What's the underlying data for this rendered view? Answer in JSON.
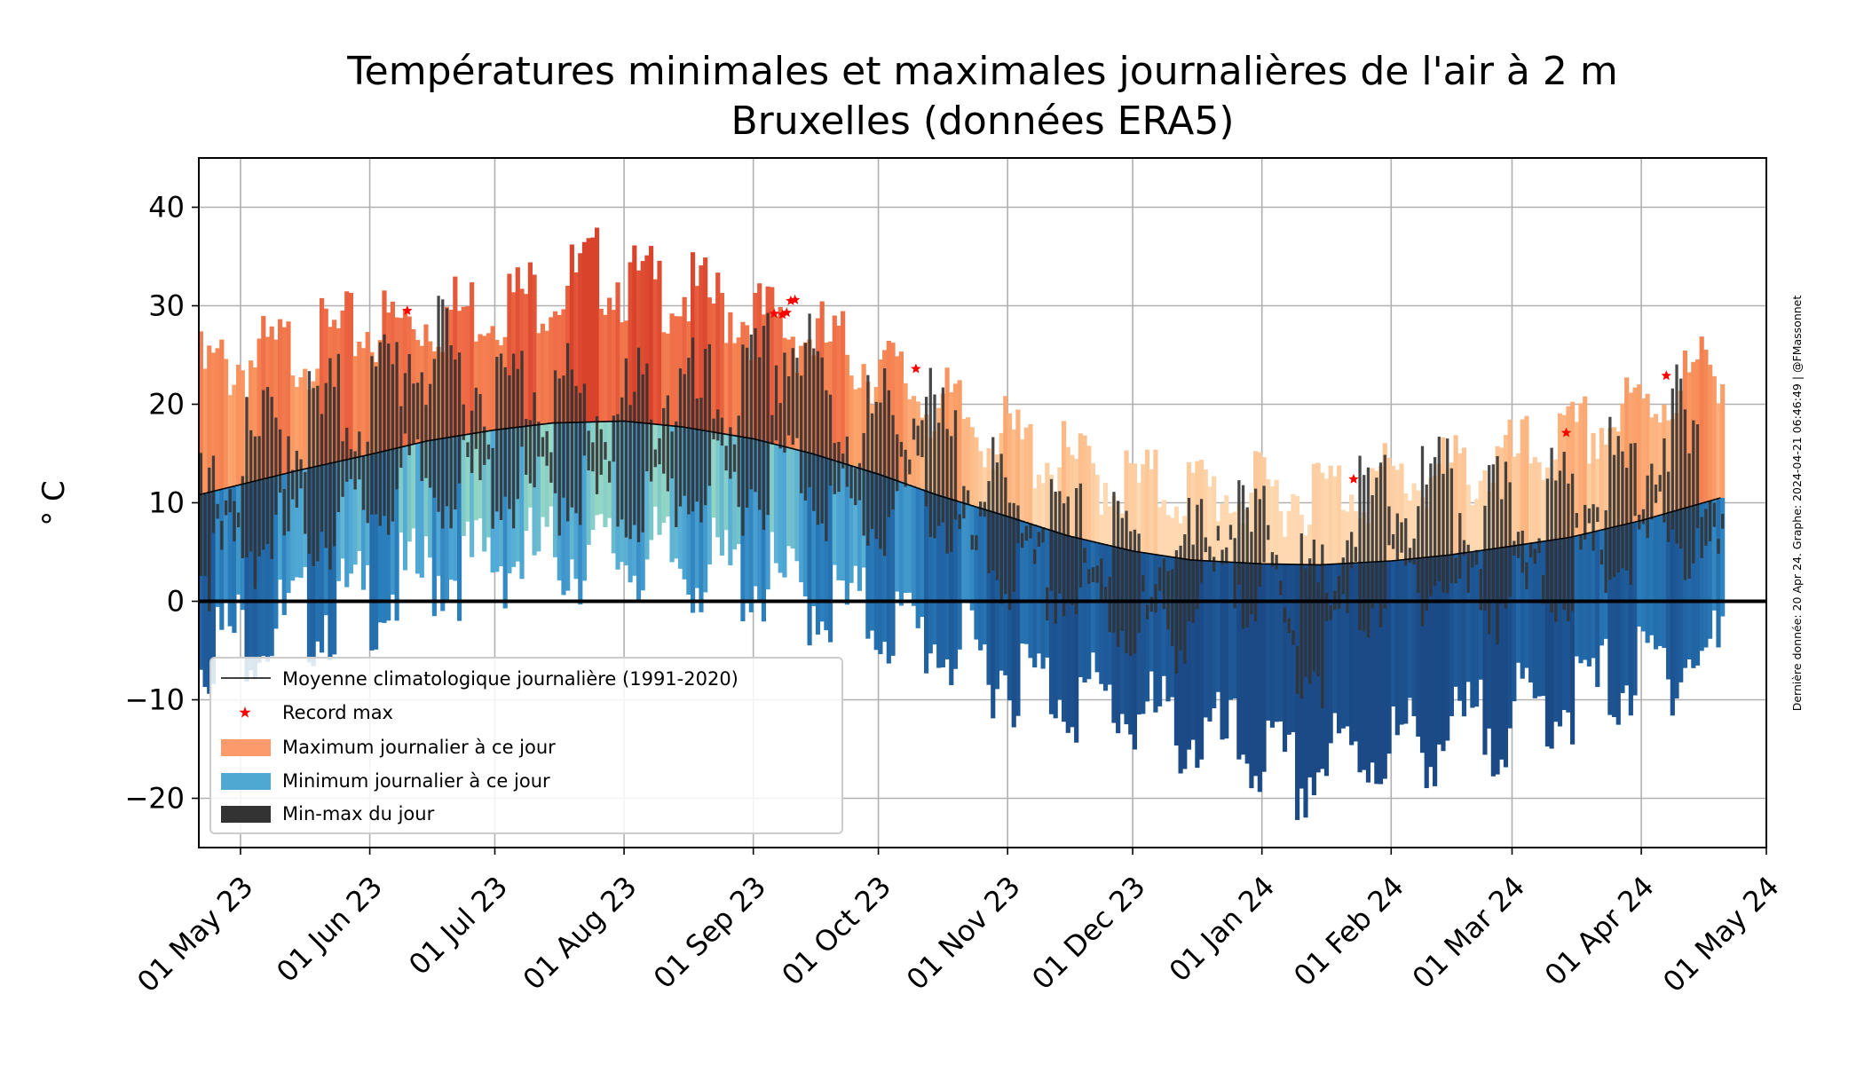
{
  "chart_data": {
    "type": "bar",
    "title": "Températures minimales et maximales journalières de l'air à 2 m",
    "subtitle": "Bruxelles (données ERA5)",
    "xlabel": "",
    "ylabel": "° C",
    "ylim": [
      -25,
      45
    ],
    "yticks": [
      -20,
      -10,
      0,
      10,
      20,
      30,
      40
    ],
    "ytick_labels": [
      "−20",
      "−10",
      "0",
      "10",
      "20",
      "30",
      "40"
    ],
    "xlim": [
      "2023-04-21",
      "2024-05-01"
    ],
    "xticks": [
      "2023-05-01",
      "2023-06-01",
      "2023-07-01",
      "2023-08-01",
      "2023-09-01",
      "2023-10-01",
      "2023-11-01",
      "2023-12-01",
      "2024-01-01",
      "2024-02-01",
      "2024-03-01",
      "2024-04-01",
      "2024-05-01"
    ],
    "xtick_labels": [
      "01 May 23",
      "01 Jun 23",
      "01 Jul 23",
      "01 Aug 23",
      "01 Sep 23",
      "01 Oct 23",
      "01 Nov 23",
      "01 Dec 23",
      "01 Jan 24",
      "01 Feb 24",
      "01 Mar 24",
      "01 Apr 24",
      "01 May 24"
    ],
    "grid": true,
    "zero_line": true,
    "legend_position": "lower-left",
    "legend": [
      {
        "label": "Moyenne climatologique journalière (1991-2020)",
        "kind": "line",
        "color": "#000000"
      },
      {
        "label": "Record max",
        "kind": "star",
        "color": "#ff0000"
      },
      {
        "label": "Maximum journalier à ce jour",
        "kind": "bar",
        "color": "#fc9a6b"
      },
      {
        "label": "Minimum journalier à ce jour",
        "kind": "bar",
        "color": "#4fa8d2"
      },
      {
        "label": "Min-max du jour",
        "kind": "bar",
        "color": "#333333"
      }
    ],
    "credit": "Dernière donnée: 20 Apr 24. Graphe: 2024-04-21 06:46:49 | @FMassonnet",
    "climatology_mean": {
      "x": [
        "2023-04-21",
        "2023-05-15",
        "2023-06-01",
        "2023-06-15",
        "2023-07-01",
        "2023-07-15",
        "2023-08-01",
        "2023-08-15",
        "2023-09-01",
        "2023-09-15",
        "2023-10-01",
        "2023-10-15",
        "2023-11-01",
        "2023-11-15",
        "2023-12-01",
        "2023-12-15",
        "2024-01-01",
        "2024-01-15",
        "2024-02-01",
        "2024-02-15",
        "2024-03-01",
        "2024-03-15",
        "2024-04-01",
        "2024-04-20"
      ],
      "y": [
        10.8,
        13.3,
        14.9,
        16.3,
        17.4,
        18.1,
        18.3,
        17.7,
        16.5,
        15.0,
        12.9,
        10.8,
        8.6,
        6.7,
        5.1,
        4.2,
        3.8,
        3.7,
        4.1,
        4.7,
        5.6,
        6.5,
        8.2,
        10.5
      ]
    },
    "record_max_highlight": {
      "x": [
        "2023-06-10",
        "2023-09-06",
        "2023-09-08",
        "2023-09-09",
        "2023-09-10",
        "2023-09-11",
        "2023-10-10",
        "2024-01-23",
        "2024-03-14",
        "2024-04-07"
      ],
      "y": [
        29.5,
        29.2,
        29.1,
        29.3,
        30.5,
        30.6,
        23.6,
        12.4,
        17.1,
        22.9
      ]
    },
    "record_max_envelope": {
      "x": [
        "2023-04-21",
        "2023-05-01",
        "2023-05-15",
        "2023-06-01",
        "2023-06-15",
        "2023-07-01",
        "2023-07-15",
        "2023-07-25",
        "2023-08-01",
        "2023-08-15",
        "2023-09-01",
        "2023-09-15",
        "2023-10-01",
        "2023-10-15",
        "2023-11-01",
        "2023-11-15",
        "2023-12-01",
        "2023-12-15",
        "2024-01-01",
        "2024-01-15",
        "2024-02-01",
        "2024-02-15",
        "2024-03-01",
        "2024-03-15",
        "2024-04-01",
        "2024-04-20"
      ],
      "y": [
        25.5,
        26.5,
        28.0,
        30.0,
        31.0,
        32.5,
        34.0,
        36.0,
        34.5,
        33.5,
        31.0,
        29.0,
        26.0,
        22.0,
        18.5,
        16.0,
        14.0,
        13.5,
        13.0,
        13.5,
        14.5,
        15.0,
        16.5,
        18.5,
        22.0,
        26.5
      ]
    },
    "record_min_envelope": {
      "x": [
        "2023-04-21",
        "2023-05-01",
        "2023-05-15",
        "2023-06-01",
        "2023-06-15",
        "2023-07-01",
        "2023-07-15",
        "2023-08-01",
        "2023-08-15",
        "2023-09-01",
        "2023-09-15",
        "2023-10-01",
        "2023-10-15",
        "2023-11-01",
        "2023-11-15",
        "2023-12-01",
        "2023-12-15",
        "2024-01-01",
        "2024-01-10",
        "2024-01-15",
        "2024-02-01",
        "2024-02-15",
        "2024-03-01",
        "2024-03-15",
        "2024-04-01",
        "2024-04-20"
      ],
      "y": [
        -1.5,
        -0.5,
        1.0,
        3.0,
        5.5,
        7.0,
        7.5,
        7.5,
        6.5,
        5.0,
        3.0,
        1.0,
        -1.5,
        -4.5,
        -6.5,
        -8.5,
        -11.0,
        -13.0,
        -16.0,
        -13.5,
        -12.0,
        -11.0,
        -9.0,
        -7.0,
        -4.5,
        -2.0
      ]
    },
    "observed_daily": {
      "x": [
        "2023-04-21",
        "2023-05-01",
        "2023-05-10",
        "2023-05-20",
        "2023-06-01",
        "2023-06-10",
        "2023-06-20",
        "2023-07-01",
        "2023-07-10",
        "2023-07-20",
        "2023-07-25",
        "2023-08-01",
        "2023-08-10",
        "2023-08-20",
        "2023-09-01",
        "2023-09-10",
        "2023-09-20",
        "2023-10-01",
        "2023-10-10",
        "2023-10-20",
        "2023-11-01",
        "2023-11-10",
        "2023-11-20",
        "2023-12-01",
        "2023-12-10",
        "2023-12-20",
        "2024-01-01",
        "2024-01-08",
        "2024-01-15",
        "2024-01-22",
        "2024-02-01",
        "2024-02-10",
        "2024-02-20",
        "2024-03-01",
        "2024-03-10",
        "2024-03-20",
        "2024-04-01",
        "2024-04-07",
        "2024-04-14",
        "2024-04-20"
      ],
      "tmin": [
        6,
        8,
        9,
        10,
        12,
        15,
        14,
        14,
        13,
        14,
        13,
        12,
        13,
        14,
        14,
        17,
        12,
        10,
        15,
        8,
        5,
        4,
        2,
        0,
        -1,
        4,
        5,
        -3,
        -4,
        2,
        4,
        5,
        3,
        3,
        4,
        6,
        7,
        11,
        6,
        5
      ],
      "tmax": [
        13,
        17,
        21,
        22,
        24,
        29,
        27,
        24,
        26,
        23,
        23,
        22,
        25,
        23,
        25,
        30,
        22,
        21,
        23,
        16,
        12,
        11,
        9,
        8,
        8,
        10,
        10,
        4,
        3,
        12,
        13,
        14,
        12,
        11,
        13,
        14,
        18,
        22,
        17,
        12
      ]
    }
  }
}
